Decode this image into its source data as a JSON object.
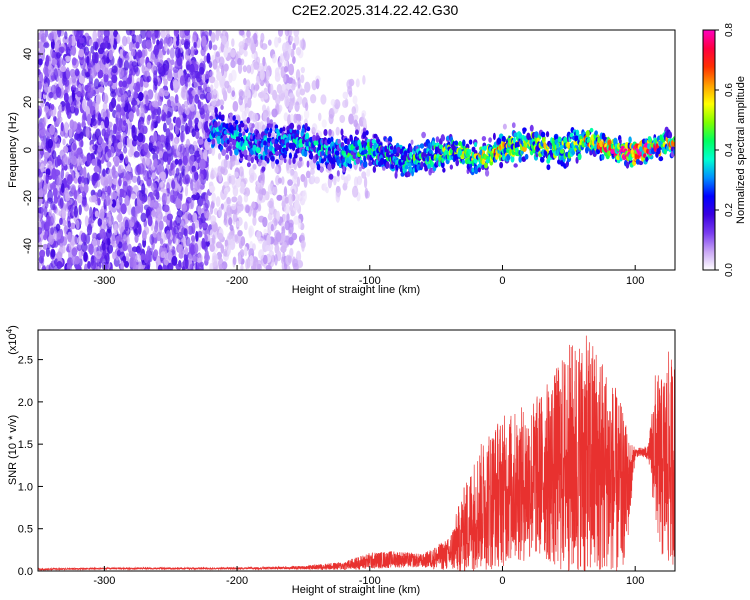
{
  "title": "C2E2.2025.314.22.42.G30",
  "colorbar": {
    "label": "Normalized spectral amplitude",
    "ticks": [
      "0.0",
      "0.2",
      "0.4",
      "0.6",
      "0.8"
    ],
    "range": [
      0,
      0.8
    ],
    "colormap": [
      "#ffffff",
      "#c9a6f5",
      "#7a3cf0",
      "#3a00e0",
      "#0000ff",
      "#0090ff",
      "#00ffd0",
      "#00ff60",
      "#80ff00",
      "#ffff00",
      "#ffa000",
      "#ff3000",
      "#ff0040",
      "#ff00c0"
    ]
  },
  "chart_data": [
    {
      "type": "heatmap",
      "name": "spectrogram",
      "xlabel": "Height of straight line (km)",
      "ylabel": "Frequency (Hz)",
      "xlim": [
        -350,
        130
      ],
      "ylim": [
        -50,
        50
      ],
      "xticks": [
        -300,
        -200,
        -100,
        0,
        100
      ],
      "yticks": [
        -40,
        -20,
        0,
        20,
        40
      ],
      "xtick_labels": [
        "-300",
        "-200",
        "-100",
        "0",
        "100"
      ],
      "ytick_labels": [
        "-40",
        "-20",
        "0",
        "20",
        "40"
      ],
      "regions": [
        {
          "x": [
            -350,
            -220
          ],
          "y": [
            -50,
            50
          ],
          "amplitude": 0.14,
          "density": 0.75
        },
        {
          "x": [
            -220,
            -150
          ],
          "y": [
            -50,
            50
          ],
          "amplitude": 0.06,
          "density": 0.45
        },
        {
          "x": [
            -150,
            -100
          ],
          "y": [
            -20,
            30
          ],
          "amplitude": 0.05,
          "density": 0.2
        }
      ],
      "ridge": [
        {
          "x": -220,
          "center": 5,
          "width": 8,
          "amplitude": 0.3
        },
        {
          "x": -150,
          "center": 2,
          "width": 7,
          "amplitude": 0.32
        },
        {
          "x": -100,
          "center": -2,
          "width": 6,
          "amplitude": 0.38
        },
        {
          "x": -50,
          "center": -3,
          "width": 6,
          "amplitude": 0.4
        },
        {
          "x": 0,
          "center": 0,
          "width": 5,
          "amplitude": 0.55
        },
        {
          "x": 50,
          "center": 3,
          "width": 6,
          "amplitude": 0.45
        },
        {
          "x": 80,
          "center": 0,
          "width": 4,
          "amplitude": 0.7
        },
        {
          "x": 110,
          "center": 1,
          "width": 4,
          "amplitude": 0.75
        },
        {
          "x": 130,
          "center": 1,
          "width": 4,
          "amplitude": 0.5
        }
      ]
    },
    {
      "type": "line",
      "name": "snr",
      "color": "#e8312f",
      "xlabel": "Height of straight line (km)",
      "ylabel": "SNR (10 * v/v)",
      "multiplier_label": "(x10",
      "multiplier_exp": "4",
      "multiplier_close": ")",
      "xlim": [
        -350,
        130
      ],
      "ylim": [
        0,
        2.85
      ],
      "xticks": [
        -300,
        -200,
        -100,
        0,
        100
      ],
      "yticks": [
        0.0,
        0.5,
        1.0,
        1.5,
        2.0,
        2.5
      ],
      "xtick_labels": [
        "-300",
        "-200",
        "-100",
        "0",
        "100"
      ],
      "ytick_labels": [
        "0.0",
        "0.5",
        "1.0",
        "1.5",
        "2.0",
        "2.5"
      ],
      "x": [
        -350,
        -300,
        -250,
        -200,
        -150,
        -120,
        -100,
        -80,
        -60,
        -40,
        -30,
        -20,
        -10,
        0,
        10,
        20,
        30,
        40,
        50,
        60,
        70,
        80,
        90,
        95,
        100,
        110,
        115,
        120,
        125,
        130
      ],
      "y_mean": [
        0.02,
        0.03,
        0.03,
        0.03,
        0.04,
        0.06,
        0.12,
        0.14,
        0.12,
        0.2,
        0.45,
        0.7,
        0.85,
        0.95,
        1.0,
        1.05,
        1.15,
        1.2,
        1.3,
        1.3,
        1.25,
        1.1,
        0.95,
        1.0,
        1.4,
        1.4,
        1.45,
        1.2,
        1.3,
        1.3
      ],
      "y_spread": [
        0.01,
        0.01,
        0.01,
        0.01,
        0.02,
        0.05,
        0.1,
        0.1,
        0.08,
        0.2,
        0.5,
        0.7,
        0.85,
        0.9,
        0.9,
        0.95,
        1.0,
        1.2,
        1.4,
        1.5,
        1.5,
        1.3,
        1.0,
        0.6,
        0.05,
        0.08,
        0.9,
        1.1,
        1.3,
        1.2
      ]
    }
  ]
}
